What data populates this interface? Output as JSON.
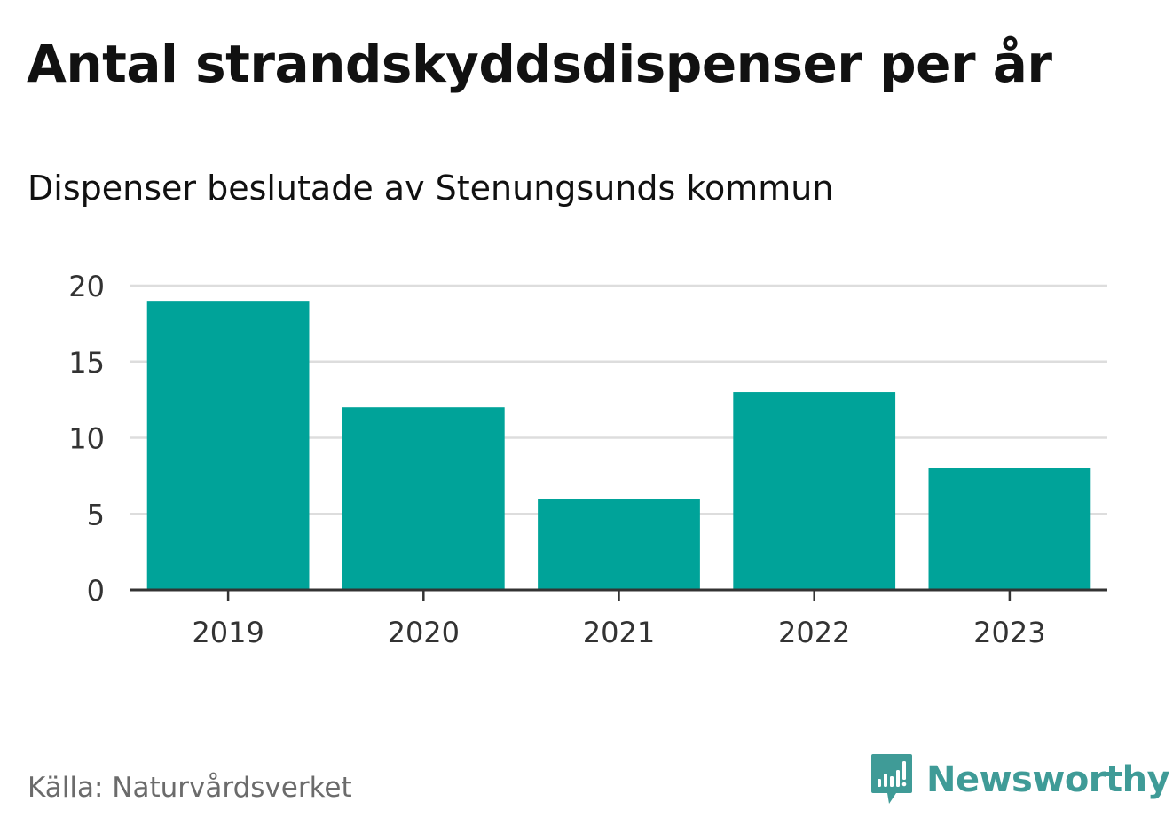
{
  "title": "Antal strandskyddsdispenser per år",
  "subtitle": "Dispenser beslutade av Stenungsunds kommun",
  "source": "Källa: Naturvårdsverket",
  "brand": "Newsworthy",
  "colors": {
    "bar": "#00a399",
    "grid": "#dddddd",
    "axis": "#333333",
    "brand": "#3f9b97"
  },
  "chart_data": {
    "type": "bar",
    "categories": [
      "2019",
      "2020",
      "2021",
      "2022",
      "2023"
    ],
    "values": [
      19,
      12,
      6,
      13,
      8
    ],
    "ylim": [
      0,
      20
    ],
    "yticks": [
      0,
      5,
      10,
      15,
      20
    ],
    "ytick_labels": [
      "0",
      "5",
      "10",
      "15",
      "20"
    ],
    "grid": true,
    "legend": "none"
  }
}
